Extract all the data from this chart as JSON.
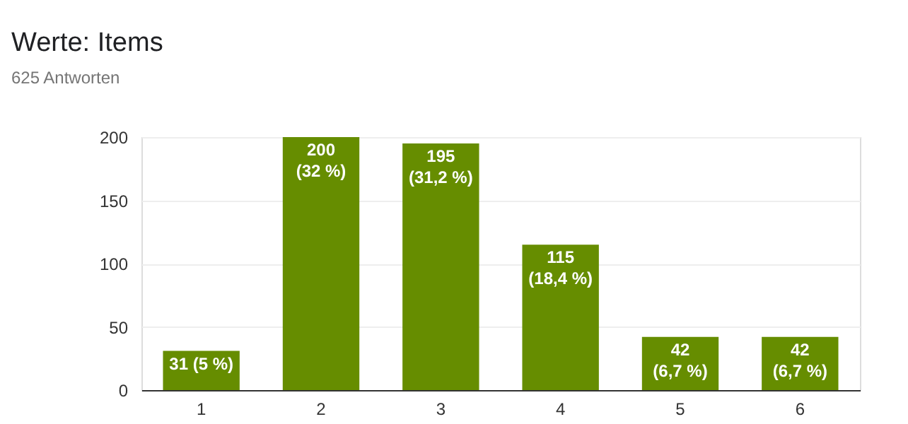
{
  "chart_data": {
    "type": "bar",
    "title": "Werte: Items",
    "subtitle": "625 Antworten",
    "categories": [
      "1",
      "2",
      "3",
      "4",
      "5",
      "6"
    ],
    "values": [
      31,
      200,
      195,
      115,
      42,
      42
    ],
    "value_labels": [
      "31 (5 %)",
      "200\n(32 %)",
      "195\n(31,2 %)",
      "115\n(18,4 %)",
      "42\n(6,7 %)",
      "42\n(6,7 %)"
    ],
    "color": "#668d00",
    "ylim": [
      0,
      200
    ],
    "yticks": [
      0,
      50,
      100,
      150,
      200
    ],
    "grid": "y"
  }
}
